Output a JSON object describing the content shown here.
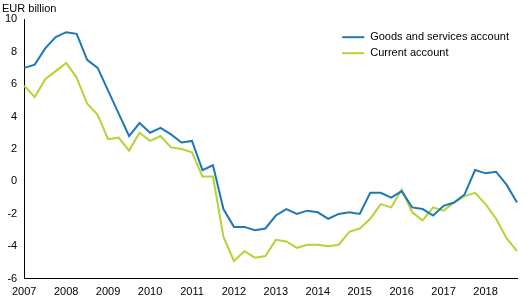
{
  "chart_data": {
    "type": "line",
    "ylabel": "EUR billion",
    "categories": [
      "2007",
      null,
      null,
      null,
      "2008",
      null,
      null,
      null,
      "2009",
      null,
      null,
      null,
      "2010",
      null,
      null,
      null,
      "2011",
      null,
      null,
      null,
      "2012",
      null,
      null,
      null,
      "2013",
      null,
      null,
      null,
      "2014",
      null,
      null,
      null,
      "2015",
      null,
      null,
      null,
      "2016",
      null,
      null,
      null,
      "2017",
      null,
      null,
      null,
      "2018",
      null,
      null,
      null
    ],
    "series": [
      {
        "name": "Goods and services account",
        "color": "#1f78b4",
        "values": [
          7.0,
          7.2,
          8.2,
          8.9,
          9.2,
          9.1,
          7.5,
          7.0,
          5.6,
          4.2,
          2.8,
          3.6,
          3.0,
          3.3,
          2.9,
          2.4,
          2.5,
          0.7,
          1.0,
          -1.7,
          -2.8,
          -2.8,
          -3.0,
          -2.9,
          -2.1,
          -1.7,
          -2.0,
          -1.8,
          -1.9,
          -2.3,
          -2.0,
          -1.9,
          -2.0,
          -0.7,
          -0.7,
          -1.0,
          -0.6,
          -1.6,
          -1.7,
          -2.1,
          -1.5,
          -1.3,
          -0.8,
          0.7,
          0.5,
          0.6,
          -0.2,
          -1.3
        ]
      },
      {
        "name": "Current account",
        "color": "#b5d334",
        "values": [
          5.9,
          5.2,
          6.3,
          6.8,
          7.3,
          6.4,
          4.8,
          4.1,
          2.6,
          2.7,
          1.9,
          3.0,
          2.5,
          2.8,
          2.1,
          2.0,
          1.8,
          0.3,
          0.3,
          -3.4,
          -4.9,
          -4.3,
          -4.7,
          -4.6,
          -3.6,
          -3.7,
          -4.1,
          -3.9,
          -3.9,
          -4.0,
          -3.9,
          -3.1,
          -2.9,
          -2.3,
          -1.4,
          -1.6,
          -0.5,
          -1.9,
          -2.4,
          -1.6,
          -1.8,
          -1.3,
          -0.9,
          -0.7,
          -1.4,
          -2.3,
          -3.5,
          -4.3
        ]
      }
    ],
    "ylim": [
      -6,
      10
    ],
    "yticks": [
      -6,
      -4,
      -2,
      0,
      2,
      4,
      6,
      8,
      10
    ],
    "grid": false,
    "legend": "upper right"
  }
}
